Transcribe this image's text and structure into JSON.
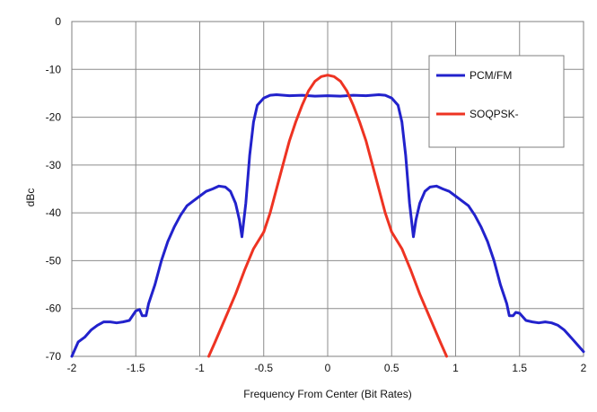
{
  "chart_data": {
    "type": "line",
    "xlabel": "Frequency From Center (Bit Rates)",
    "ylabel": "dBc",
    "xlim": [
      -2,
      2
    ],
    "ylim": [
      -70,
      0
    ],
    "x_ticks": [
      -2,
      -1.5,
      -1,
      -0.5,
      0,
      0.5,
      1,
      1.5,
      2
    ],
    "y_ticks": [
      0,
      -10,
      -20,
      -30,
      -40,
      -50,
      -60,
      -70
    ],
    "x_tick_labels": [
      "-2",
      "-1.5",
      "-1",
      "-0.5",
      "0",
      "0.5",
      "1",
      "1.5",
      "2"
    ],
    "y_tick_labels": [
      "0",
      "-10",
      "-20",
      "-30",
      "-40",
      "-50",
      "-60",
      "-70"
    ],
    "grid": true,
    "legend_position": "top-right",
    "series": [
      {
        "name": "PCM/FM",
        "color": "#2222cc",
        "points": [
          [
            -2,
            -70
          ],
          [
            -1.95,
            -67
          ],
          [
            -1.9,
            -66
          ],
          [
            -1.85,
            -64.5
          ],
          [
            -1.8,
            -63.5
          ],
          [
            -1.75,
            -62.8
          ],
          [
            -1.7,
            -62.8
          ],
          [
            -1.65,
            -63
          ],
          [
            -1.6,
            -62.8
          ],
          [
            -1.55,
            -62.5
          ],
          [
            -1.5,
            -60.5
          ],
          [
            -1.47,
            -60.2
          ],
          [
            -1.45,
            -61.5
          ],
          [
            -1.42,
            -61.5
          ],
          [
            -1.4,
            -59
          ],
          [
            -1.35,
            -55
          ],
          [
            -1.3,
            -50
          ],
          [
            -1.25,
            -46
          ],
          [
            -1.2,
            -43
          ],
          [
            -1.15,
            -40.5
          ],
          [
            -1.1,
            -38.5
          ],
          [
            -1.05,
            -37.5
          ],
          [
            -1.0,
            -36.5
          ],
          [
            -0.95,
            -35.5
          ],
          [
            -0.9,
            -35
          ],
          [
            -0.85,
            -34.4
          ],
          [
            -0.8,
            -34.6
          ],
          [
            -0.76,
            -35.5
          ],
          [
            -0.72,
            -38
          ],
          [
            -0.69,
            -41.5
          ],
          [
            -0.67,
            -45
          ],
          [
            -0.64,
            -38
          ],
          [
            -0.61,
            -28
          ],
          [
            -0.58,
            -21
          ],
          [
            -0.55,
            -17.5
          ],
          [
            -0.5,
            -16
          ],
          [
            -0.45,
            -15.4
          ],
          [
            -0.4,
            -15.3
          ],
          [
            -0.3,
            -15.5
          ],
          [
            -0.2,
            -15.4
          ],
          [
            -0.1,
            -15.6
          ],
          [
            0,
            -15.5
          ],
          [
            0.1,
            -15.6
          ],
          [
            0.2,
            -15.4
          ],
          [
            0.3,
            -15.5
          ],
          [
            0.4,
            -15.3
          ],
          [
            0.45,
            -15.4
          ],
          [
            0.5,
            -16
          ],
          [
            0.55,
            -17.5
          ],
          [
            0.58,
            -21
          ],
          [
            0.61,
            -28
          ],
          [
            0.64,
            -38
          ],
          [
            0.67,
            -45
          ],
          [
            0.69,
            -41.5
          ],
          [
            0.72,
            -38
          ],
          [
            0.76,
            -35.5
          ],
          [
            0.8,
            -34.6
          ],
          [
            0.85,
            -34.4
          ],
          [
            0.9,
            -35
          ],
          [
            0.95,
            -35.5
          ],
          [
            1.0,
            -36.5
          ],
          [
            1.05,
            -37.5
          ],
          [
            1.1,
            -38.5
          ],
          [
            1.15,
            -40.5
          ],
          [
            1.2,
            -43
          ],
          [
            1.25,
            -46
          ],
          [
            1.3,
            -50
          ],
          [
            1.35,
            -55
          ],
          [
            1.4,
            -59
          ],
          [
            1.42,
            -61.5
          ],
          [
            1.45,
            -61.5
          ],
          [
            1.47,
            -60.8
          ],
          [
            1.5,
            -61
          ],
          [
            1.55,
            -62.5
          ],
          [
            1.6,
            -62.8
          ],
          [
            1.65,
            -63
          ],
          [
            1.7,
            -62.8
          ],
          [
            1.75,
            -63
          ],
          [
            1.8,
            -63.5
          ],
          [
            1.85,
            -64.5
          ],
          [
            1.9,
            -66
          ],
          [
            1.95,
            -67.5
          ],
          [
            2,
            -69
          ]
        ]
      },
      {
        "name": "SOQPSK-",
        "color": "#ee3322",
        "points": [
          [
            -0.93,
            -70
          ],
          [
            -0.88,
            -67
          ],
          [
            -0.8,
            -62
          ],
          [
            -0.72,
            -57
          ],
          [
            -0.65,
            -52
          ],
          [
            -0.58,
            -47.5
          ],
          [
            -0.5,
            -44
          ],
          [
            -0.45,
            -40
          ],
          [
            -0.4,
            -35
          ],
          [
            -0.35,
            -30
          ],
          [
            -0.3,
            -25
          ],
          [
            -0.25,
            -21
          ],
          [
            -0.2,
            -17.5
          ],
          [
            -0.15,
            -14.5
          ],
          [
            -0.1,
            -12.5
          ],
          [
            -0.05,
            -11.5
          ],
          [
            0,
            -11.2
          ],
          [
            0.05,
            -11.5
          ],
          [
            0.1,
            -12.5
          ],
          [
            0.15,
            -14.5
          ],
          [
            0.2,
            -17.5
          ],
          [
            0.25,
            -21
          ],
          [
            0.3,
            -25
          ],
          [
            0.35,
            -30
          ],
          [
            0.4,
            -35
          ],
          [
            0.45,
            -40
          ],
          [
            0.5,
            -44
          ],
          [
            0.58,
            -47.5
          ],
          [
            0.65,
            -52
          ],
          [
            0.72,
            -57
          ],
          [
            0.8,
            -62
          ],
          [
            0.88,
            -67
          ],
          [
            0.93,
            -70
          ]
        ]
      }
    ]
  }
}
